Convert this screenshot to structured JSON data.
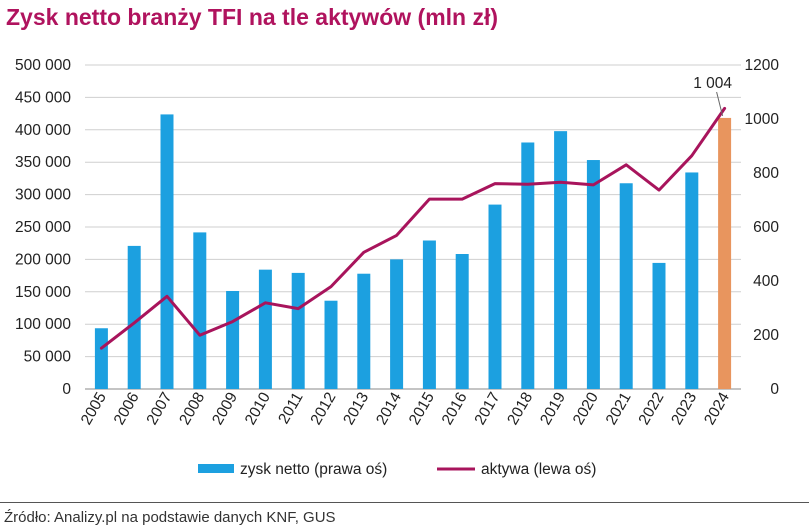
{
  "page": {
    "title": "Zysk netto branży TFI na tle aktywów (mln zł)",
    "source": "Źródło: Analizy.pl na podstawie danych KNF, GUS"
  },
  "chart_data": {
    "type": "bar",
    "title": "Zysk netto branży TFI na tle aktywów (mln zł)",
    "categories": [
      "2005",
      "2006",
      "2007",
      "2008",
      "2009",
      "2010",
      "2011",
      "2012",
      "2013",
      "2014",
      "2015",
      "2016",
      "2017",
      "2018",
      "2019",
      "2020",
      "2021",
      "2022",
      "2023",
      "2024"
    ],
    "series": [
      {
        "name": "zysk netto (prawa oś)",
        "type": "bar",
        "axis": "right",
        "color": "#1ca0e0",
        "highlight_color": "#e8955e",
        "highlight_category": "2024",
        "values": [
          225,
          530,
          1017,
          580,
          363,
          442,
          430,
          327,
          427,
          480,
          550,
          500,
          683,
          913,
          955,
          848,
          762,
          467,
          802,
          1004
        ]
      },
      {
        "name": "aktywa (lewa oś)",
        "type": "line",
        "axis": "left",
        "color": "#a8145c",
        "values": [
          63000,
          102000,
          143000,
          83000,
          104000,
          133000,
          124000,
          158000,
          211000,
          237000,
          293000,
          293000,
          317000,
          316000,
          319000,
          315000,
          346000,
          307000,
          360000,
          433000
        ]
      }
    ],
    "y_left": {
      "min": 0,
      "max": 500000,
      "step": 50000,
      "tick_labels": [
        "0",
        "50 000",
        "100 000",
        "150 000",
        "200 000",
        "250 000",
        "300 000",
        "350 000",
        "400 000",
        "450 000",
        "500 000"
      ]
    },
    "y_right": {
      "min": 0,
      "max": 1200,
      "step": 200,
      "tick_labels": [
        "0",
        "200",
        "400",
        "600",
        "800",
        "1000",
        "1200"
      ]
    },
    "annotation": {
      "category": "2024",
      "text": "1 004"
    },
    "grid": true,
    "legend_position": "bottom"
  }
}
